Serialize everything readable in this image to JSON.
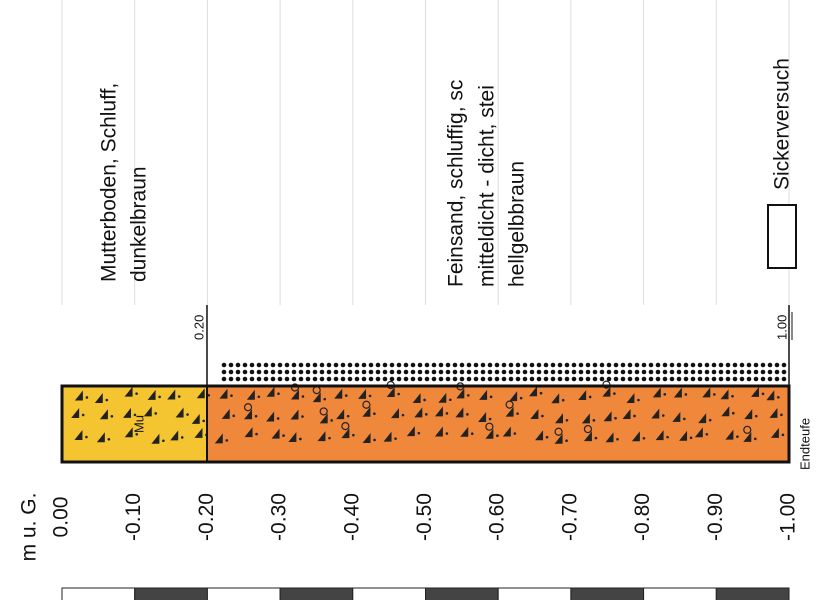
{
  "axis": {
    "unit": "m u. G.",
    "ticks": [
      "0.00",
      "-0.10",
      "-0.20",
      "-0.30",
      "-0.40",
      "-0.50",
      "-0.60",
      "-0.70",
      "-0.80",
      "-0.90",
      "-1.00"
    ]
  },
  "layers": [
    {
      "code": "Mu",
      "lines": [
        "Mutterboden, Schluff,",
        "dunkelbraun"
      ],
      "bottom": "0.20"
    },
    {
      "lines": [
        "Feinsand, schluffig, sc",
        "mitteldicht - dicht, stei",
        "hellgelbbraun"
      ],
      "bottom": "1.00"
    }
  ],
  "end_label": "Endteufe",
  "legend": {
    "label": "Sickerversuch"
  }
}
